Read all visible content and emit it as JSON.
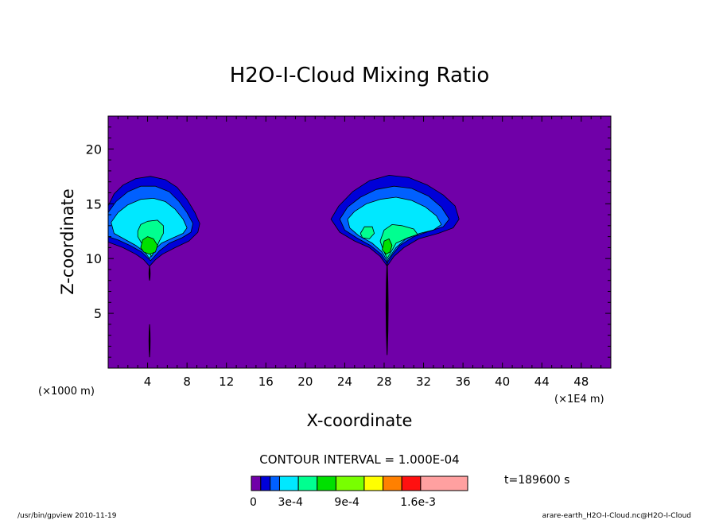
{
  "chart_data": {
    "type": "heatmap",
    "title": "H2O-I-Cloud Mixing Ratio",
    "xlabel": "X-coordinate",
    "ylabel": "Z-coordinate",
    "x_unit_left": "(×1000 m)",
    "x_unit_right": "(×1E4 m)",
    "xlim": [
      0,
      51
    ],
    "ylim": [
      0,
      23
    ],
    "x_ticks": [
      4,
      8,
      12,
      16,
      20,
      24,
      28,
      32,
      36,
      40,
      44,
      48
    ],
    "y_ticks": [
      5,
      10,
      15,
      20
    ],
    "contour_interval_text": "CONTOUR INTERVAL = 1.000E-04",
    "time_text": "t=189600 s",
    "background_color": "#7000a8",
    "colorbar": {
      "colors": [
        "#7000a8",
        "#0000d8",
        "#0060ff",
        "#00e8ff",
        "#00ff90",
        "#00e000",
        "#78ff00",
        "#ffff00",
        "#ff8000",
        "#ff1010",
        "#ffa0a0"
      ],
      "widths": [
        1,
        1,
        1,
        2,
        2,
        2,
        3,
        2,
        2,
        2,
        5
      ],
      "labels": [
        {
          "text": "0",
          "at": 0
        },
        {
          "text": "3e-4",
          "at": 3
        },
        {
          "text": "9e-4",
          "at": 9
        },
        {
          "text": "1.6e-3",
          "at": 16
        }
      ]
    },
    "clouds": [
      {
        "center_x": 4.2,
        "levels": [
          {
            "level": 1,
            "color": "#0000d8",
            "pts": [
              [
                0,
                14.8
              ],
              [
                0.6,
                15.9
              ],
              [
                1.5,
                16.7
              ],
              [
                2.8,
                17.3
              ],
              [
                4.3,
                17.5
              ],
              [
                5.8,
                17.2
              ],
              [
                7.0,
                16.5
              ],
              [
                8.0,
                15.4
              ],
              [
                8.8,
                14.2
              ],
              [
                9.3,
                13.2
              ],
              [
                9.1,
                12.4
              ],
              [
                8.2,
                11.6
              ],
              [
                6.8,
                11.0
              ],
              [
                5.5,
                10.4
              ],
              [
                4.8,
                9.9
              ],
              [
                4.2,
                9.3
              ],
              [
                3.6,
                9.9
              ],
              [
                2.8,
                10.4
              ],
              [
                1.5,
                11.0
              ],
              [
                0,
                11.5
              ]
            ]
          },
          {
            "level": 2,
            "color": "#0060ff",
            "pts": [
              [
                0,
                14.2
              ],
              [
                0.8,
                15.2
              ],
              [
                2.0,
                16.1
              ],
              [
                3.3,
                16.6
              ],
              [
                4.8,
                16.6
              ],
              [
                6.2,
                16.1
              ],
              [
                7.2,
                15.2
              ],
              [
                8.0,
                14.2
              ],
              [
                8.6,
                13.2
              ],
              [
                8.4,
                12.4
              ],
              [
                7.5,
                11.9
              ],
              [
                6.2,
                11.4
              ],
              [
                5.2,
                10.7
              ],
              [
                4.3,
                9.8
              ],
              [
                3.4,
                10.6
              ],
              [
                2.2,
                11.2
              ],
              [
                1.0,
                11.7
              ],
              [
                0,
                12.0
              ]
            ]
          },
          {
            "level": 3,
            "color": "#00e8ff",
            "pts": [
              [
                0.3,
                13.3
              ],
              [
                1.0,
                14.2
              ],
              [
                2.0,
                14.9
              ],
              [
                3.3,
                15.4
              ],
              [
                4.6,
                15.5
              ],
              [
                5.8,
                15.2
              ],
              [
                6.8,
                14.5
              ],
              [
                7.6,
                13.6
              ],
              [
                8.0,
                12.8
              ],
              [
                7.6,
                12.3
              ],
              [
                6.6,
                11.9
              ],
              [
                5.4,
                11.4
              ],
              [
                4.6,
                10.7
              ],
              [
                4.2,
                10.0
              ],
              [
                3.7,
                10.6
              ],
              [
                2.8,
                11.2
              ],
              [
                1.6,
                11.8
              ],
              [
                0.6,
                12.3
              ]
            ]
          },
          {
            "level": 5,
            "color": "#00ff90",
            "pts": [
              [
                3.0,
                12.5
              ],
              [
                3.3,
                13.1
              ],
              [
                4.0,
                13.4
              ],
              [
                5.0,
                13.5
              ],
              [
                5.6,
                13.0
              ],
              [
                5.6,
                12.3
              ],
              [
                5.2,
                11.6
              ],
              [
                4.8,
                10.8
              ],
              [
                4.4,
                10.2
              ],
              [
                4.0,
                10.8
              ],
              [
                3.4,
                11.4
              ],
              [
                3.0,
                12.0
              ]
            ]
          },
          {
            "level": 7,
            "color": "#00e000",
            "pts": [
              [
                3.3,
                11.0
              ],
              [
                3.5,
                11.7
              ],
              [
                4.0,
                12.0
              ],
              [
                4.6,
                11.8
              ],
              [
                5.0,
                11.2
              ],
              [
                4.8,
                10.6
              ],
              [
                4.2,
                10.4
              ],
              [
                3.6,
                10.6
              ]
            ]
          }
        ],
        "stem_segments": [
          [
            9.3,
            8.0
          ],
          [
            4.0,
            1.0
          ]
        ]
      },
      {
        "center_x": 28.3,
        "levels": [
          {
            "level": 1,
            "color": "#0000d8",
            "pts": [
              [
                22.6,
                13.6
              ],
              [
                23.4,
                14.8
              ],
              [
                24.8,
                16.1
              ],
              [
                26.5,
                17.1
              ],
              [
                28.5,
                17.6
              ],
              [
                30.5,
                17.4
              ],
              [
                32.4,
                16.7
              ],
              [
                34.0,
                15.8
              ],
              [
                35.2,
                14.8
              ],
              [
                35.6,
                13.6
              ],
              [
                35.0,
                12.8
              ],
              [
                33.5,
                12.3
              ],
              [
                31.5,
                11.8
              ],
              [
                30.0,
                11.0
              ],
              [
                29.0,
                10.2
              ],
              [
                28.3,
                9.3
              ],
              [
                27.6,
                10.2
              ],
              [
                26.5,
                11.0
              ],
              [
                25.0,
                11.6
              ],
              [
                23.5,
                12.4
              ]
            ]
          },
          {
            "level": 2,
            "color": "#0060ff",
            "pts": [
              [
                23.5,
                13.6
              ],
              [
                24.3,
                14.7
              ],
              [
                25.6,
                15.6
              ],
              [
                27.2,
                16.3
              ],
              [
                29.0,
                16.6
              ],
              [
                30.8,
                16.4
              ],
              [
                32.5,
                15.7
              ],
              [
                33.8,
                14.7
              ],
              [
                34.6,
                13.6
              ],
              [
                34.0,
                12.9
              ],
              [
                32.6,
                12.5
              ],
              [
                31.0,
                12.0
              ],
              [
                29.6,
                11.2
              ],
              [
                28.8,
                10.3
              ],
              [
                28.3,
                9.6
              ],
              [
                27.7,
                10.4
              ],
              [
                26.6,
                11.2
              ],
              [
                25.2,
                11.9
              ],
              [
                24.0,
                12.6
              ]
            ]
          },
          {
            "level": 3,
            "color": "#00e8ff",
            "pts": [
              [
                24.3,
                13.6
              ],
              [
                25.0,
                14.3
              ],
              [
                26.2,
                15.0
              ],
              [
                27.6,
                15.4
              ],
              [
                29.2,
                15.6
              ],
              [
                30.8,
                15.3
              ],
              [
                32.2,
                14.7
              ],
              [
                33.3,
                13.9
              ],
              [
                33.8,
                13.1
              ],
              [
                33.0,
                12.6
              ],
              [
                31.6,
                12.3
              ],
              [
                30.2,
                11.8
              ],
              [
                29.2,
                11.0
              ],
              [
                28.6,
                10.2
              ],
              [
                28.3,
                9.8
              ],
              [
                27.8,
                10.6
              ],
              [
                26.8,
                11.4
              ],
              [
                25.4,
                12.1
              ],
              [
                24.5,
                12.8
              ]
            ]
          },
          {
            "level": 5,
            "color": "#00ff90",
            "pts": [
              [
                27.6,
                11.6
              ],
              [
                28.0,
                12.6
              ],
              [
                28.8,
                13.1
              ],
              [
                29.8,
                13.0
              ],
              [
                31.0,
                12.7
              ],
              [
                31.4,
                12.2
              ],
              [
                30.4,
                11.9
              ],
              [
                29.2,
                11.4
              ],
              [
                28.7,
                10.6
              ],
              [
                28.3,
                10.0
              ],
              [
                27.9,
                10.8
              ]
            ]
          },
          {
            "level": 5,
            "color": "#00ff90",
            "pts": [
              [
                25.6,
                12.3
              ],
              [
                26.0,
                12.9
              ],
              [
                26.8,
                12.9
              ],
              [
                27.0,
                12.3
              ],
              [
                26.5,
                11.8
              ],
              [
                25.8,
                11.9
              ]
            ]
          },
          {
            "level": 7,
            "color": "#00e000",
            "pts": [
              [
                27.8,
                10.8
              ],
              [
                28.0,
                11.6
              ],
              [
                28.5,
                11.8
              ],
              [
                28.8,
                11.2
              ],
              [
                28.6,
                10.6
              ],
              [
                28.2,
                10.4
              ]
            ]
          }
        ],
        "stem_segments": [
          [
            9.8,
            1.2
          ]
        ]
      }
    ]
  },
  "footer": {
    "left": "/usr/bin/gpview   2010-11-19",
    "right": "arare-earth_H2O-I-Cloud.nc@H2O-I-Cloud"
  }
}
